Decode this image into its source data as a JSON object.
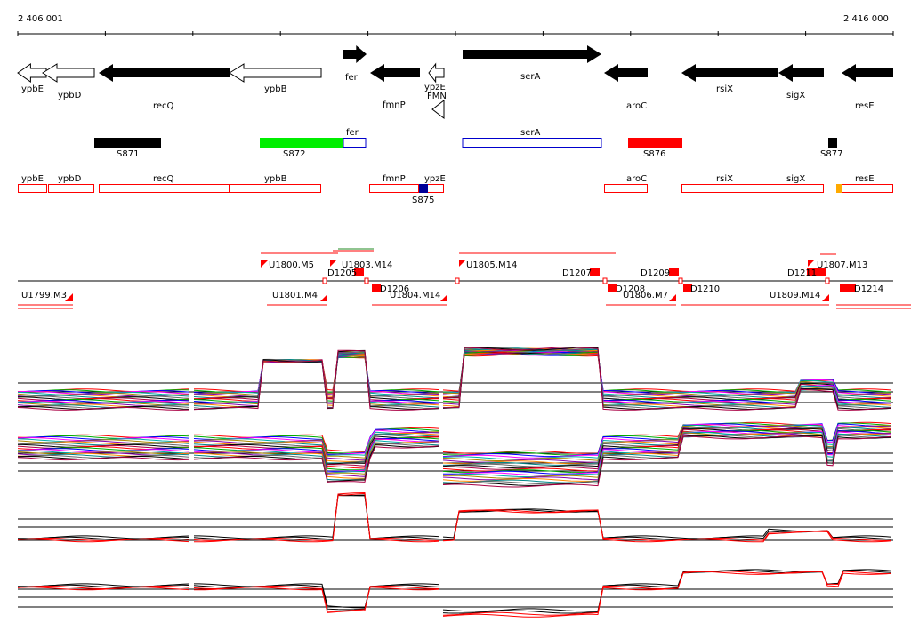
{
  "coords": {
    "start": "2 406 001",
    "end": "2 416 000"
  },
  "genes": [
    {
      "id": "ypbE",
      "label": "ypbE",
      "style": "open",
      "dir": "L"
    },
    {
      "id": "ypbD",
      "label": "ypbD",
      "style": "open",
      "dir": "L"
    },
    {
      "id": "recQ",
      "label": "recQ",
      "style": "solid",
      "dir": "L"
    },
    {
      "id": "ypbB",
      "label": "ypbB",
      "style": "open",
      "dir": "L"
    },
    {
      "id": "fer",
      "label": "fer",
      "style": "solid",
      "dir": "R"
    },
    {
      "id": "fmnP",
      "label": "fmnP",
      "style": "solid",
      "dir": "L"
    },
    {
      "id": "ypzE",
      "label": "ypzE",
      "style": "open",
      "dir": "L"
    },
    {
      "id": "FMN",
      "label": "FMN",
      "style": "riboswitch",
      "dir": "L"
    },
    {
      "id": "serA",
      "label": "serA",
      "style": "solid",
      "dir": "R"
    },
    {
      "id": "aroC",
      "label": "aroC",
      "style": "solid",
      "dir": "L"
    },
    {
      "id": "rsiX",
      "label": "rsiX",
      "style": "solid",
      "dir": "L"
    },
    {
      "id": "sigX",
      "label": "sigX",
      "style": "solid",
      "dir": "L"
    },
    {
      "id": "resE",
      "label": "resE",
      "style": "solid",
      "dir": "L"
    }
  ],
  "segments": [
    {
      "label": "S871",
      "color": "#000000"
    },
    {
      "label": "S872",
      "color": "#00ee00"
    },
    {
      "label": "fer",
      "color": "outline"
    },
    {
      "label": "serA",
      "color": "outline"
    },
    {
      "label": "S876",
      "color": "#ff0000"
    },
    {
      "label": "S877",
      "color": "#000000"
    }
  ],
  "cds_boxes": [
    "ypbE",
    "ypbD",
    "recQ",
    "ypbB",
    "fmnP",
    "ypzE",
    "aroC",
    "rsiX",
    "sigX",
    "resE"
  ],
  "cds_marker": "S875",
  "transcripts_upper": [
    "U1800.M5",
    "D1205",
    "U1803.M14",
    "U1805.M14",
    "D1207",
    "D1209",
    "D1211",
    "U1807.M13"
  ],
  "transcripts_lower": [
    "U1799.M3",
    "U1801.M4",
    "D1206",
    "U1804.M14",
    "D1208",
    "U1806.M7",
    "D1210",
    "U1809.M14",
    "D1214"
  ],
  "colors": {
    "ink": "#000000",
    "accent": "#ff0000",
    "outline": "#0000cc",
    "marker": "#000099",
    "orange": "#ffaa00"
  }
}
